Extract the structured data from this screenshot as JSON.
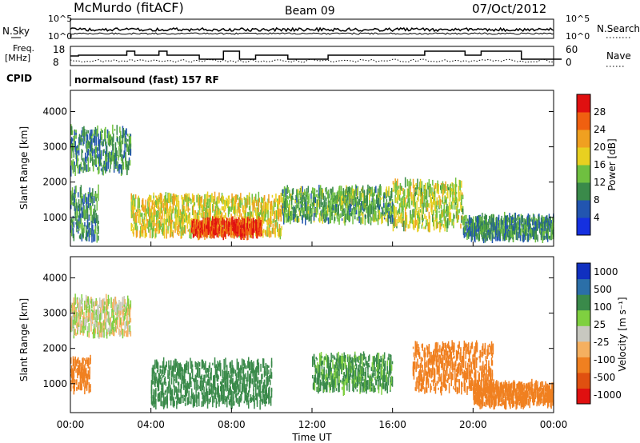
{
  "header": {
    "station": "McMurdo (fitACF)",
    "beam": "Beam 09",
    "date": "07/Oct/2012"
  },
  "top_panels": {
    "noise_left_label": "N.Sky",
    "noise_right_label": "N.Search",
    "noise_left_ticks": [
      "10^5",
      "10^0"
    ],
    "noise_right_ticks": [
      "10^5",
      "10^0"
    ],
    "freq_label_1": "Freq.",
    "freq_label_2": "[MHz]",
    "freq_ticks": [
      "18",
      "8"
    ],
    "nave_label": "Nave",
    "nave_ticks": [
      "60",
      "0"
    ],
    "cpid_label": "CPID",
    "cpid_text": "normalsound (fast) 157 RF"
  },
  "colors": {
    "power_scale": [
      "#1530e0",
      "#2255b0",
      "#3a8a4a",
      "#6fc040",
      "#e8d020",
      "#f0a020",
      "#f06010",
      "#e01010"
    ],
    "velocity_scale": [
      "#1030c0",
      "#2b6fa8",
      "#3a8a4a",
      "#7fd040",
      "#c8c8c0",
      "#f5b060",
      "#f08020",
      "#e05010",
      "#e01010"
    ]
  },
  "chart_data": [
    {
      "type": "heatmap",
      "name": "power",
      "ylabel": "Slant Range [km]",
      "yticks": [
        "1000",
        "2000",
        "3000",
        "4000"
      ],
      "xticks": [
        "00:00",
        "04:00",
        "08:00",
        "12:00",
        "16:00",
        "20:00",
        "00:00"
      ],
      "colorbar_label": "Power [dB]",
      "colorbar_ticks": [
        "4",
        "8",
        "12",
        "16",
        "20",
        "24",
        "28"
      ],
      "units": "dB",
      "regions": [
        {
          "t": [
            0.0,
            1.4
          ],
          "r": [
            400,
            1800
          ],
          "v": 10
        },
        {
          "t": [
            0.0,
            3.0
          ],
          "r": [
            2300,
            3500
          ],
          "v": 10
        },
        {
          "t": [
            3.0,
            10.5
          ],
          "r": [
            500,
            1600
          ],
          "v": 18
        },
        {
          "t": [
            6.0,
            9.5
          ],
          "r": [
            500,
            900
          ],
          "v": 28
        },
        {
          "t": [
            10.5,
            16.0
          ],
          "r": [
            900,
            1800
          ],
          "v": 12
        },
        {
          "t": [
            16.0,
            19.5
          ],
          "r": [
            700,
            2000
          ],
          "v": 16
        },
        {
          "t": [
            19.5,
            24.0
          ],
          "r": [
            400,
            1000
          ],
          "v": 10
        }
      ]
    },
    {
      "type": "heatmap",
      "name": "velocity",
      "ylabel": "Slant Range [km]",
      "yticks": [
        "1000",
        "2000",
        "3000",
        "4000"
      ],
      "xticks": [
        "00:00",
        "04:00",
        "08:00",
        "12:00",
        "16:00",
        "20:00",
        "00:00"
      ],
      "xlabel": "Time UT",
      "colorbar_label": "Velocity [m s⁻¹]",
      "colorbar_ticks": [
        "1000",
        "500",
        "100",
        "25",
        "-25",
        "-100",
        "-500",
        "-1000"
      ],
      "units": "m/s",
      "regions": [
        {
          "t": [
            0.0,
            1.0
          ],
          "r": [
            800,
            1700
          ],
          "v": -300
        },
        {
          "t": [
            0.0,
            3.0
          ],
          "r": [
            2400,
            3400
          ],
          "v": 0
        },
        {
          "t": [
            4.0,
            10.0
          ],
          "r": [
            400,
            1600
          ],
          "v": 200
        },
        {
          "t": [
            12.0,
            16.0
          ],
          "r": [
            800,
            1800
          ],
          "v": 150
        },
        {
          "t": [
            17.0,
            21.0
          ],
          "r": [
            800,
            2100
          ],
          "v": -300
        },
        {
          "t": [
            20.0,
            24.0
          ],
          "r": [
            400,
            1000
          ],
          "v": -200
        }
      ]
    }
  ]
}
